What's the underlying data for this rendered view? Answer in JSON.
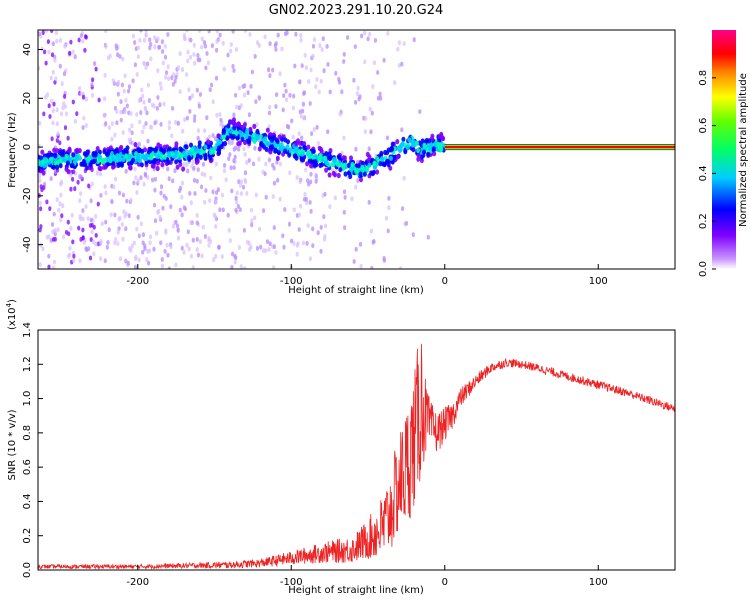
{
  "title": "GN02.2023.291.10.20.G24",
  "chart_data": [
    {
      "type": "heatmap",
      "name": "spectrogram",
      "xlabel": "Height of straight line (km)",
      "ylabel": "Frequency (Hz)",
      "xlim": [
        -265,
        150
      ],
      "ylim": [
        -50,
        48
      ],
      "xticks": [
        -200,
        -100,
        0,
        100
      ],
      "yticks": [
        -40,
        -20,
        0,
        20,
        40
      ],
      "colorbar": {
        "label": "Normalized spectral amplitude",
        "range": [
          0,
          1
        ],
        "ticks": [
          "0.0",
          "0.2",
          "0.4",
          "0.6",
          "0.8"
        ]
      },
      "colormap": [
        "#ffffff",
        "#7f00ff",
        "#0000ff",
        "#00ffff",
        "#00ff00",
        "#ffff00",
        "#ff7f00",
        "#ff0000",
        "#ff00a0"
      ],
      "ridge": {
        "x": [
          -265,
          -240,
          -200,
          -170,
          -150,
          -140,
          -125,
          -110,
          -95,
          -80,
          -65,
          -55,
          -45,
          -35,
          -28,
          -22,
          -15,
          -10,
          -5,
          0
        ],
        "y": [
          -6,
          -5,
          -4,
          -3,
          -1,
          7,
          4,
          1,
          -2,
          -5,
          -8,
          -10,
          -7,
          -3,
          0,
          2,
          -1,
          0,
          1,
          0
        ]
      },
      "tone": {
        "x_start": 0,
        "x_end": 150,
        "frequency": 0
      }
    },
    {
      "type": "line",
      "name": "snr",
      "xlabel": "Height of straight line (km)",
      "ylabel": "SNR (10 * v/v)",
      "multiplier_label": "(x10",
      "multiplier_exp": "4",
      "multiplier_close": ")",
      "xlim": [
        -265,
        150
      ],
      "ylim": [
        0,
        1.4
      ],
      "xticks": [
        -200,
        -100,
        0,
        100
      ],
      "yticks": [
        "0.0",
        "0.2",
        "0.4",
        "0.6",
        "0.8",
        "1.0",
        "1.2",
        "1.4"
      ],
      "color": "#ee2222",
      "series": [
        {
          "x": [
            -265,
            -240,
            -200,
            -170,
            -140,
            -120,
            -100,
            -80,
            -60,
            -50,
            -40,
            -35,
            -30,
            -25,
            -20,
            -17,
            -15,
            -13,
            -10,
            -5,
            0,
            5,
            10,
            20,
            30,
            40,
            50,
            60,
            80,
            100,
            120,
            140,
            150
          ],
          "y": [
            0.02,
            0.02,
            0.02,
            0.025,
            0.03,
            0.04,
            0.07,
            0.1,
            0.12,
            0.18,
            0.25,
            0.35,
            0.5,
            0.6,
            0.75,
            0.9,
            1.0,
            0.9,
            0.85,
            0.8,
            0.85,
            0.9,
            1.0,
            1.1,
            1.18,
            1.21,
            1.2,
            1.18,
            1.13,
            1.08,
            1.03,
            0.97,
            0.94
          ],
          "noise": [
            0.012,
            0.012,
            0.012,
            0.015,
            0.02,
            0.025,
            0.04,
            0.06,
            0.08,
            0.12,
            0.2,
            0.25,
            0.3,
            0.35,
            0.4,
            0.45,
            0.45,
            0.25,
            0.15,
            0.12,
            0.1,
            0.08,
            0.06,
            0.04,
            0.03,
            0.025,
            0.025,
            0.025,
            0.025,
            0.025,
            0.025,
            0.025,
            0.025
          ]
        }
      ]
    }
  ]
}
